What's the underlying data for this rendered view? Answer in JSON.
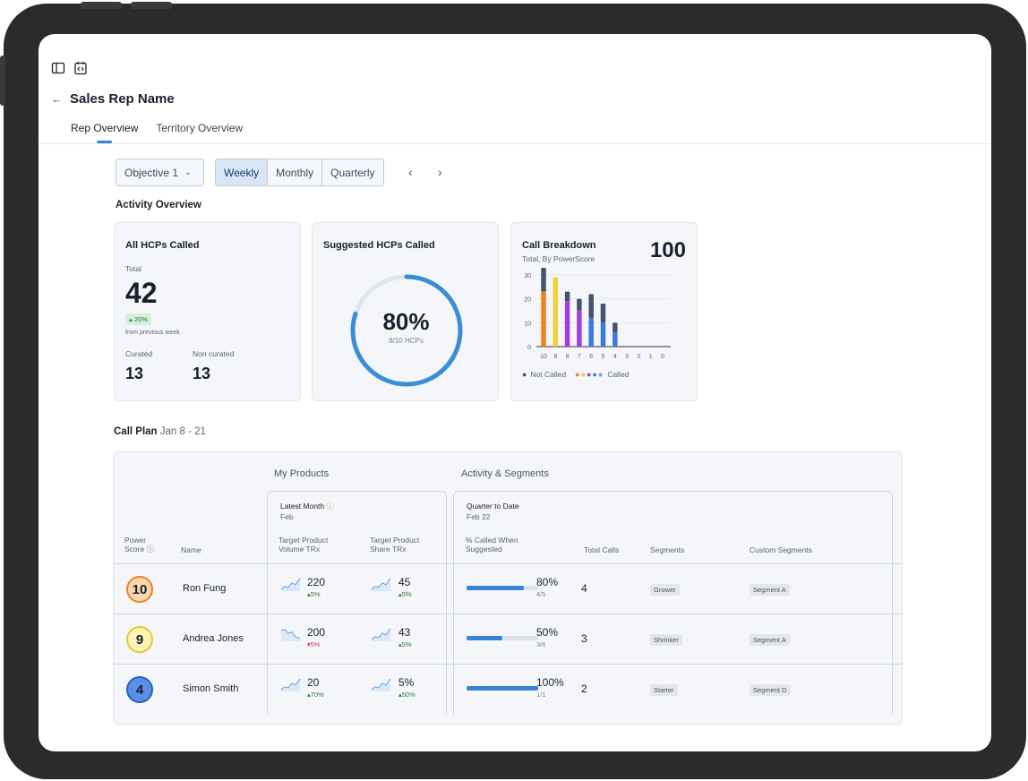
{
  "page": {
    "title": "Sales Rep Name",
    "back_icon": "arrow-left-icon"
  },
  "tabs": [
    {
      "label": "Rep Overview",
      "active": true
    },
    {
      "label": "Territory Overview",
      "active": false
    }
  ],
  "controls": {
    "objective": "Objective 1",
    "periods": [
      "Weekly",
      "Monthly",
      "Quarterly"
    ],
    "selected_period": "Weekly"
  },
  "activity": {
    "heading": "Activity Overview",
    "all_hcps": {
      "title": "All HCPs Called",
      "total_label": "Total",
      "total": "42",
      "change": "20%",
      "change_note": "from previous week",
      "curated_label": "Curated",
      "curated": "13",
      "non_curated_label": "Non curated",
      "non_curated": "13"
    },
    "suggested": {
      "title": "Suggested HCPs Called",
      "percent": "80%",
      "detail": "8/10 HCPs",
      "fraction": 0.8
    },
    "breakdown": {
      "title": "Call Breakdown",
      "subtitle": "Total, By PowerScore",
      "total": "100",
      "legend_not_called": "Not Called",
      "legend_called": "Called"
    }
  },
  "chart_data": {
    "type": "bar",
    "title": "Call Breakdown",
    "categories": [
      "10",
      "9",
      "8",
      "7",
      "6",
      "5",
      "4",
      "3",
      "2",
      "1",
      "0"
    ],
    "ylim": [
      0,
      30
    ],
    "yticks": [
      "30",
      "20",
      "10",
      "0"
    ],
    "series": [
      {
        "name": "Called",
        "values": [
          23,
          29,
          19,
          15,
          12,
          10,
          6,
          0,
          0,
          0,
          0
        ],
        "colors": [
          "#f0821e",
          "#f2d23c",
          "#a23fe0",
          "#a23fe0",
          "#3b7be0",
          "#3b7be0",
          "#3b7be0",
          "#3b7be0",
          "#3b7be0",
          "#3b7be0",
          "#3b7be0"
        ]
      },
      {
        "name": "Not Called",
        "values": [
          10,
          0,
          4,
          5,
          10,
          8,
          4,
          0,
          0,
          0,
          0
        ],
        "color": "#47536a"
      }
    ],
    "grid": true
  },
  "plan": {
    "heading": "Call Plan",
    "dates": "Jan 8 - 21",
    "group_products": "My Products",
    "group_activity": "Activity & Segments",
    "latest_month": "Latest Month",
    "latest_month_sub": "Feb",
    "qtd": "Quarter to Date",
    "qtd_sub": "Feb 22",
    "col_power": "Power Score",
    "col_name": "Name",
    "col_vol": "Target Product Volume TRx",
    "col_share": "Target Product Share TRx",
    "col_called": "% Called When Suggested",
    "col_calls": "Total Calls",
    "col_segments": "Segments",
    "col_custom": "Custom Segments",
    "rows": [
      {
        "score": "10",
        "color": "#f0821e",
        "fill": "#fbd9b0",
        "name": "Ron Fung",
        "vol": "220",
        "vol_chg": "5%",
        "vol_dir": "up",
        "share": "45",
        "share_chg": "5%",
        "share_dir": "up",
        "pct": "80%",
        "pct_val": 0.8,
        "frac": "4/5",
        "calls": "4",
        "segment": "Grower",
        "custom": "Segment A"
      },
      {
        "score": "9",
        "color": "#e6c830",
        "fill": "#fdf3b6",
        "name": "Andrea Jones",
        "vol": "200",
        "vol_chg": "5%",
        "vol_dir": "down",
        "share": "43",
        "share_chg": "5%",
        "share_dir": "up",
        "pct": "50%",
        "pct_val": 0.5,
        "frac": "3/6",
        "calls": "3",
        "segment": "Shrinker",
        "custom": "Segment A"
      },
      {
        "score": "4",
        "color": "#2e5fc0",
        "fill": "#5b8ee6",
        "name": "Simon Smith",
        "vol": "20",
        "vol_chg": "70%",
        "vol_dir": "up",
        "share": "5%",
        "share_chg": "50%",
        "share_dir": "up",
        "pct": "100%",
        "pct_val": 1.0,
        "frac": "1/1",
        "calls": "2",
        "segment": "Starter",
        "custom": "Segment D"
      }
    ]
  }
}
